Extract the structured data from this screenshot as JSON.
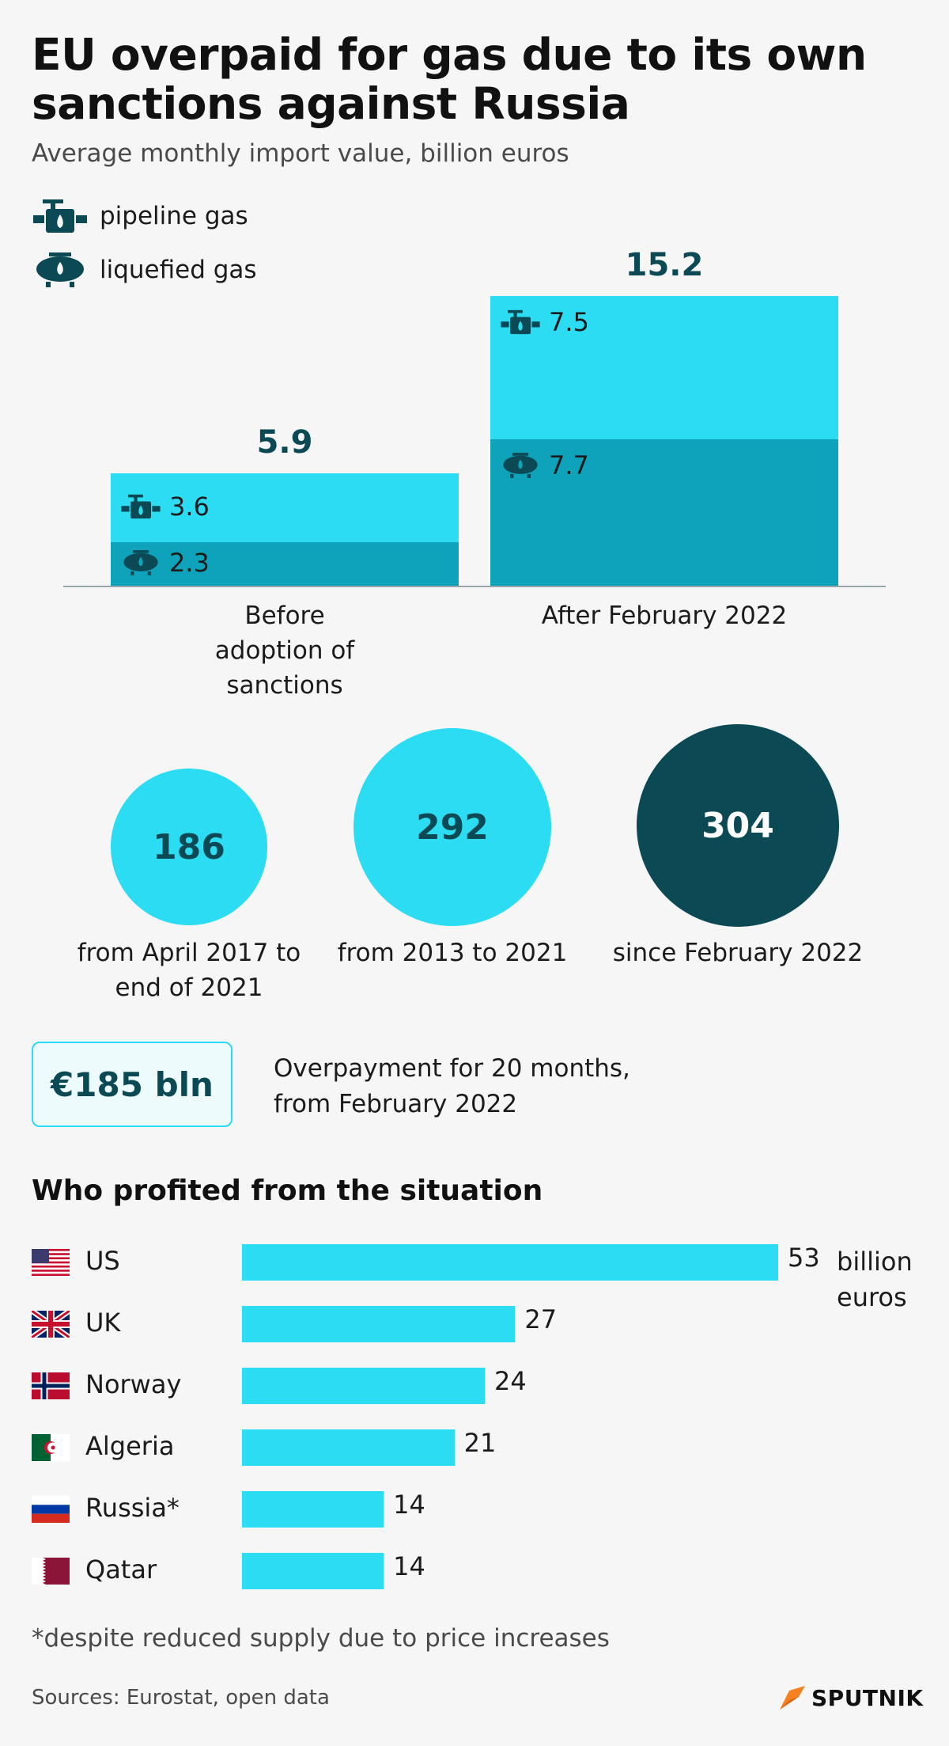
{
  "title_line1": "EU overpaid for gas due to its own",
  "title_line2": "sanctions against Russia",
  "subtitle": "Average monthly import value, billion euros",
  "legend": {
    "pipeline": "pipeline gas",
    "liquefied": "liquefied gas"
  },
  "colors": {
    "pipeline": "#2bdcf2",
    "liquefied": "#0ea3bb",
    "dark": "#0b4a54",
    "bar": "#2bdcf2"
  },
  "chart_data": [
    {
      "type": "bar",
      "stacked": true,
      "categories": [
        "Before adoption of sanctions",
        "After February 2022"
      ],
      "category_lines": [
        [
          "Before",
          "adoption of",
          "sanctions"
        ],
        [
          "After February 2022"
        ]
      ],
      "series": [
        {
          "name": "liquefied gas",
          "values": [
            2.3,
            7.7
          ],
          "labels": [
            "2.3",
            "7.7"
          ]
        },
        {
          "name": "pipeline gas",
          "values": [
            3.6,
            7.5
          ],
          "labels": [
            "3.6",
            "7.5"
          ]
        }
      ],
      "totals": [
        5.9,
        15.2
      ],
      "total_labels": [
        "5.9",
        "15.2"
      ],
      "ylim": [
        0,
        15.2
      ]
    },
    {
      "type": "bar",
      "orientation": "horizontal",
      "title": "Who profited from the situation",
      "categories": [
        "US",
        "UK",
        "Norway",
        "Algeria",
        "Russia*",
        "Qatar"
      ],
      "values": [
        53,
        27,
        24,
        21,
        14,
        14
      ],
      "value_labels": [
        "53",
        "27",
        "24",
        "21",
        "14",
        "14"
      ],
      "unit": [
        "billion",
        "euros"
      ],
      "xlim": [
        0,
        53
      ]
    }
  ],
  "circles": [
    {
      "value": "186",
      "label_lines": [
        "from April 2017 to",
        "end of 2021"
      ],
      "fill": "#2bdcf2",
      "text_color": "#0b4a54"
    },
    {
      "value": "292",
      "label_lines": [
        "from 2013 to 2021"
      ],
      "fill": "#2bdcf2",
      "text_color": "#0b4a54"
    },
    {
      "value": "304",
      "label_lines": [
        "since February 2022"
      ],
      "fill": "#0b4a54",
      "text_color": "#ffffff"
    }
  ],
  "overpayment": {
    "value": "€185 bln",
    "text_line1": "Overpayment for 20 months,",
    "text_line2": "from February 2022"
  },
  "flags": [
    "us-flag-icon",
    "uk-flag-icon",
    "norway-flag-icon",
    "algeria-flag-icon",
    "russia-flag-icon",
    "qatar-flag-icon"
  ],
  "footnote": "*despite reduced supply due to price increases",
  "source": "Sources: Eurostat, open data",
  "logo": "SPUTNIK"
}
